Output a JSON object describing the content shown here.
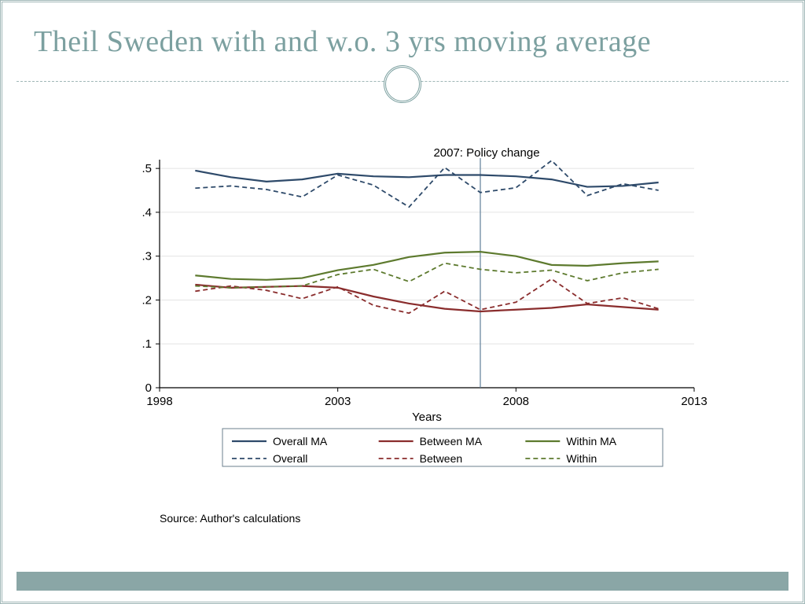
{
  "slide": {
    "title": "Theil Sweden with and w.o. 3 yrs moving average",
    "source_note": "Source: Author's calculations",
    "accent_color": "#7ca0a0",
    "footer_bar_color": "#8aa6a6"
  },
  "chart": {
    "type": "line",
    "annotation": {
      "x": 2007,
      "label": "2007: Policy change",
      "line_color": "#5f7f99",
      "line_width": 1.2
    },
    "x_axis": {
      "label": "Years",
      "min": 1998,
      "max": 2013,
      "ticks": [
        1998,
        2003,
        2008,
        2013
      ],
      "label_fontsize": 15,
      "tick_fontsize": 15
    },
    "y_axis": {
      "min": 0,
      "max": 0.52,
      "ticks": [
        0,
        0.1,
        0.2,
        0.3,
        0.4,
        0.5
      ],
      "tick_labels": [
        "0",
        ".1",
        ".2",
        ".3",
        ".4",
        ".5"
      ],
      "label_fontsize": 15,
      "tick_fontsize": 15
    },
    "grid": {
      "color": "#e4e4e4",
      "width": 1
    },
    "axis_color": "#000000",
    "background_color": "#ffffff",
    "series": [
      {
        "name": "Overall MA",
        "color": "#2e4a6a",
        "dash": "solid",
        "width": 2.2,
        "x": [
          1999,
          2000,
          2001,
          2002,
          2003,
          2004,
          2005,
          2006,
          2007,
          2008,
          2009,
          2010,
          2011,
          2012
        ],
        "y": [
          0.495,
          0.48,
          0.47,
          0.475,
          0.488,
          0.482,
          0.48,
          0.485,
          0.485,
          0.482,
          0.475,
          0.458,
          0.46,
          0.468
        ]
      },
      {
        "name": "Between MA",
        "color": "#8a2d2d",
        "dash": "solid",
        "width": 2.2,
        "x": [
          1999,
          2000,
          2001,
          2002,
          2003,
          2004,
          2005,
          2006,
          2007,
          2008,
          2009,
          2010,
          2011,
          2012
        ],
        "y": [
          0.235,
          0.228,
          0.23,
          0.232,
          0.228,
          0.208,
          0.192,
          0.18,
          0.174,
          0.178,
          0.182,
          0.19,
          0.184,
          0.178
        ]
      },
      {
        "name": "Within MA",
        "color": "#5d7a2e",
        "dash": "solid",
        "width": 2.2,
        "x": [
          1999,
          2000,
          2001,
          2002,
          2003,
          2004,
          2005,
          2006,
          2007,
          2008,
          2009,
          2010,
          2011,
          2012
        ],
        "y": [
          0.256,
          0.248,
          0.246,
          0.25,
          0.268,
          0.28,
          0.298,
          0.308,
          0.31,
          0.3,
          0.28,
          0.278,
          0.284,
          0.288
        ]
      },
      {
        "name": "Overall",
        "color": "#2e4a6a",
        "dash": "dashed",
        "width": 1.8,
        "x": [
          1999,
          2000,
          2001,
          2002,
          2003,
          2004,
          2005,
          2006,
          2007,
          2008,
          2009,
          2010,
          2011,
          2012
        ],
        "y": [
          0.455,
          0.46,
          0.452,
          0.435,
          0.485,
          0.462,
          0.412,
          0.502,
          0.445,
          0.456,
          0.518,
          0.438,
          0.465,
          0.45
        ]
      },
      {
        "name": "Between",
        "color": "#8a2d2d",
        "dash": "dashed",
        "width": 1.8,
        "x": [
          1999,
          2000,
          2001,
          2002,
          2003,
          2004,
          2005,
          2006,
          2007,
          2008,
          2009,
          2010,
          2011,
          2012
        ],
        "y": [
          0.22,
          0.232,
          0.222,
          0.203,
          0.23,
          0.188,
          0.17,
          0.22,
          0.178,
          0.195,
          0.248,
          0.192,
          0.205,
          0.18
        ]
      },
      {
        "name": "Within",
        "color": "#5d7a2e",
        "dash": "dashed",
        "width": 1.8,
        "x": [
          1999,
          2000,
          2001,
          2002,
          2003,
          2004,
          2005,
          2006,
          2007,
          2008,
          2009,
          2010,
          2011,
          2012
        ],
        "y": [
          0.232,
          0.228,
          0.23,
          0.232,
          0.258,
          0.27,
          0.242,
          0.284,
          0.27,
          0.262,
          0.268,
          0.244,
          0.262,
          0.27
        ]
      }
    ],
    "legend": {
      "rows": 2,
      "cols": 3,
      "border_color": "#6b7f8d",
      "fontsize": 14
    }
  }
}
